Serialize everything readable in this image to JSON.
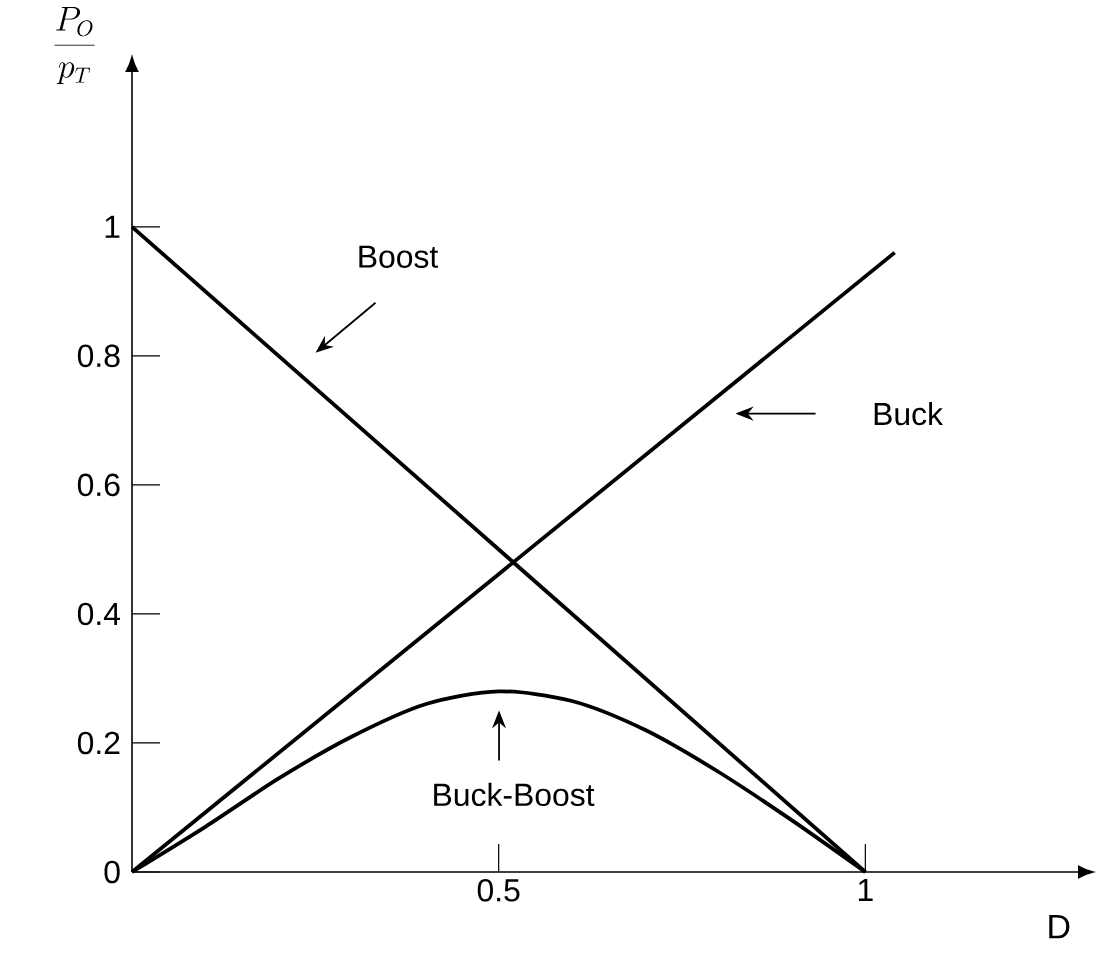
{
  "chart_data": {
    "type": "line",
    "xlabel": "D",
    "ylabel": "\\frac{P_O}{p_T}",
    "xlim": [
      0,
      1.29
    ],
    "ylim": [
      0,
      1.24
    ],
    "xticks": [
      0.5,
      1
    ],
    "yticks": [
      0,
      0.2,
      0.4,
      0.6,
      0.8,
      1
    ],
    "series": [
      {
        "color": "#000000",
        "x": [
          0,
          1
        ],
        "values": [
          1,
          0
        ]
      },
      {
        "color": "#000000",
        "x": [
          0,
          1.04
        ],
        "values": [
          0,
          0.96
        ]
      },
      {
        "color": "#000000",
        "x": [
          0,
          0.1,
          0.2,
          0.3,
          0.4,
          0.5,
          0.6,
          0.7,
          0.8,
          0.9,
          1
        ],
        "values": [
          0,
          0.07,
          0.145,
          0.21,
          0.26,
          0.28,
          0.265,
          0.22,
          0.155,
          0.08,
          0
        ]
      }
    ],
    "annotations": [
      "Boost",
      "Buck",
      "Buck-Boost"
    ]
  }
}
